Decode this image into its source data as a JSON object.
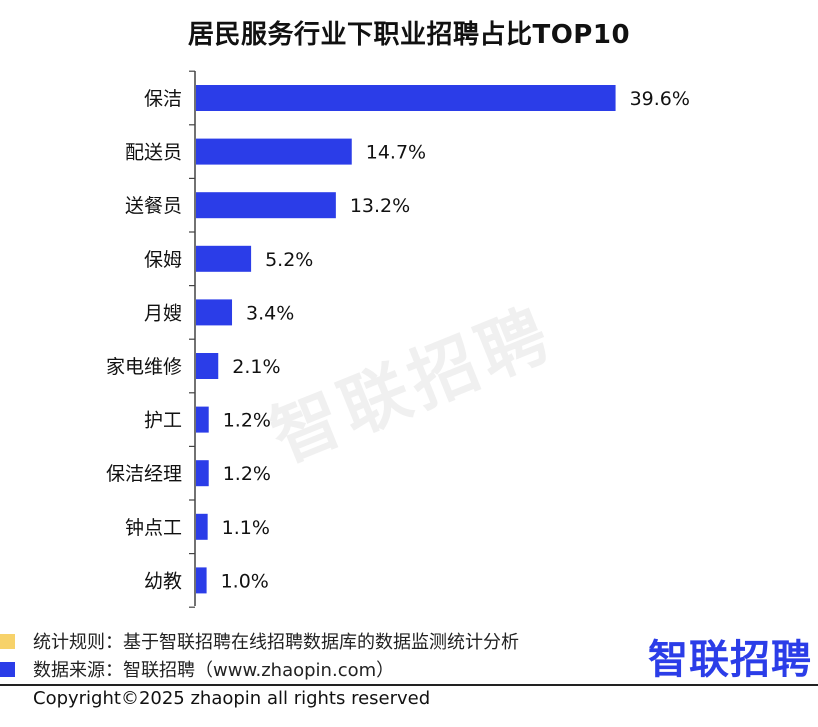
{
  "chart_data": {
    "type": "bar",
    "orientation": "horizontal",
    "title": "居民服务行业下职业招聘占比TOP10",
    "categories": [
      "保洁",
      "配送员",
      "送餐员",
      "保姆",
      "月嫂",
      "家电维修",
      "护工",
      "保洁经理",
      "钟点工",
      "幼教"
    ],
    "values": [
      39.6,
      14.7,
      13.2,
      5.2,
      3.4,
      2.1,
      1.2,
      1.2,
      1.1,
      1.0
    ],
    "value_labels": [
      "39.6%",
      "14.7%",
      "13.2%",
      "5.2%",
      "3.4%",
      "2.1%",
      "1.2%",
      "1.2%",
      "1.1%",
      "1.0%"
    ],
    "unit": "%",
    "xlim": [
      0,
      42
    ],
    "grid": false,
    "bar_color": "#2b3de8"
  },
  "watermark": "智联招聘",
  "legend": [
    {
      "text": "统计规则：基于智联招聘在线招聘数据库的数据监测统计分析",
      "color": "#f7d26a"
    },
    {
      "text": "数据来源：智联招聘（www.zhaopin.com）",
      "color": "#2b3de8"
    }
  ],
  "logo": "智联招聘",
  "copyright": "Copyright©2025 zhaopin all rights reserved"
}
